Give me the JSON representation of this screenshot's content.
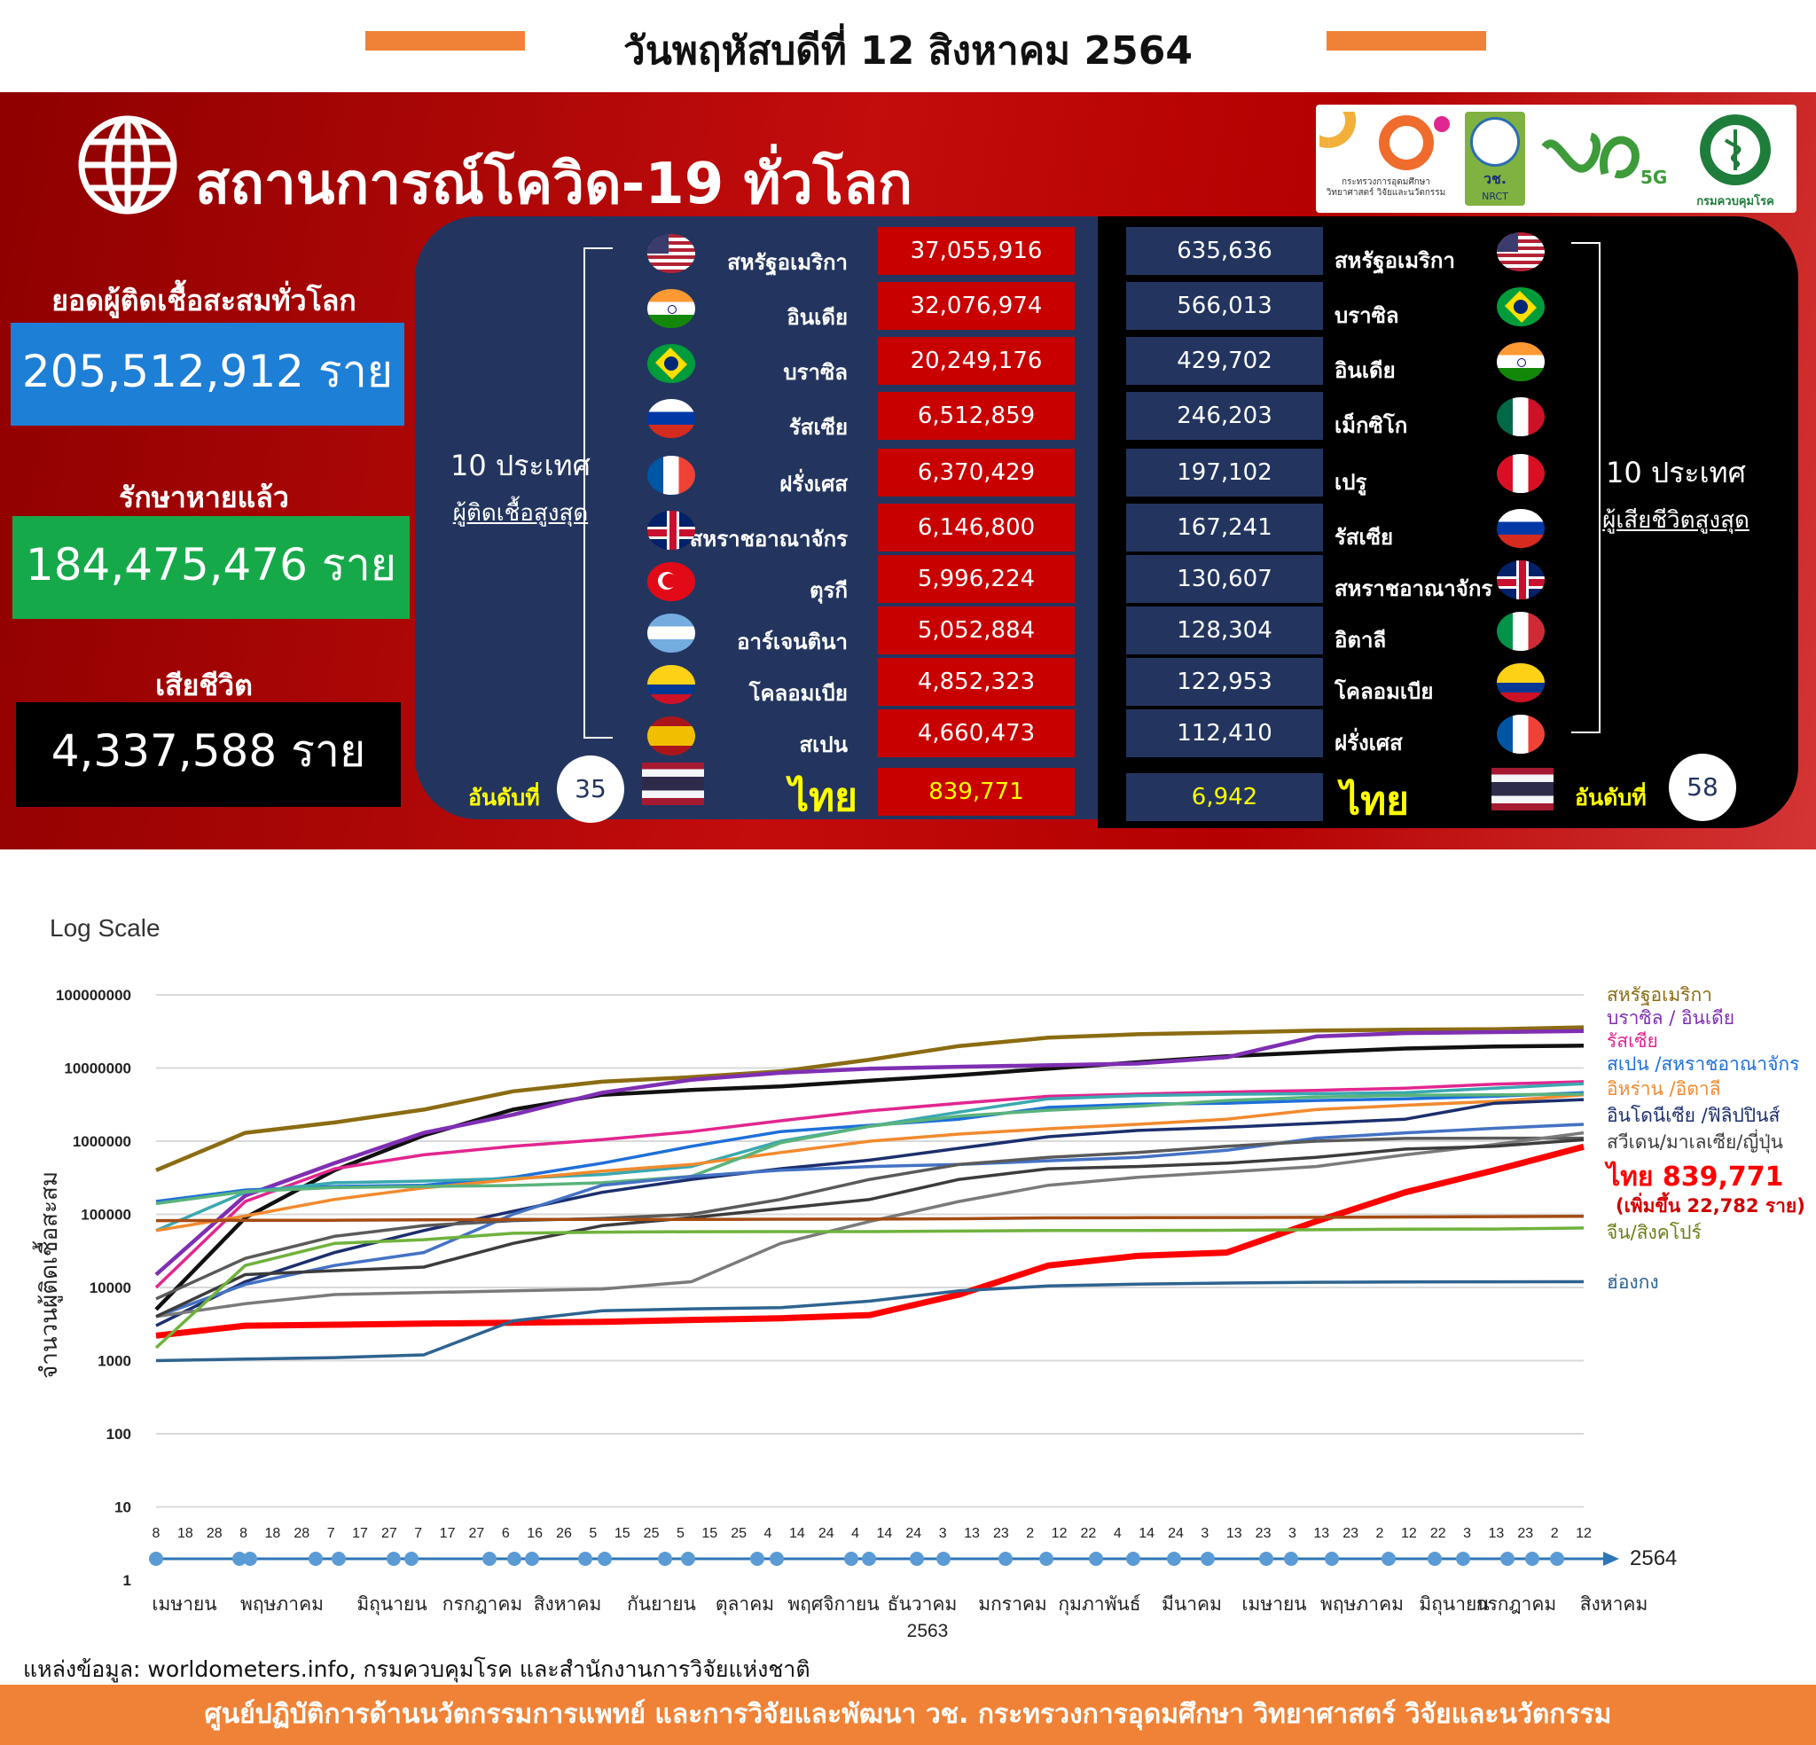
{
  "header": {
    "date_title": "วันพฤหัสบดีที่ 12 สิงหาคม 2564",
    "accent_color": "#ef8236"
  },
  "panel": {
    "title": "สถานการณ์โควิด-19 ทั่วโลก",
    "globe_icon": "globe-icon",
    "logos": {
      "mhesi_caption": "กระทรวงการอุดมศึกษา วิทยาศาสตร์ วิจัยและนวัตกรรม",
      "nrct_text": "วช.",
      "nrct_sub": "NRCT",
      "fiveg_text": "5G",
      "ddc_caption": "กรมควบคุมโรค"
    },
    "stats": {
      "cases_label": "ยอดผู้ติดเชื้อสะสมทั่วโลก",
      "cases_value": "205,512,912 ราย",
      "recovered_label": "รักษาหายแล้ว",
      "recovered_value": "184,475,476 ราย",
      "deaths_label": "เสียชีวิต",
      "deaths_value": "4,337,588 ราย"
    },
    "cases_side": {
      "title": "10 ประเทศ",
      "subtitle": "ผู้ติดเชื้อสูงสุด",
      "rank_label": "อันดับที่",
      "rank": "35"
    },
    "deaths_side": {
      "title": "10 ประเทศ",
      "subtitle": "ผู้เสียชีวิตสูงสุด",
      "rank_label": "อันดับที่",
      "rank": "58"
    },
    "top_cases": [
      {
        "country": "สหรัฐอเมริกา",
        "value": "37,055,916",
        "flag": "us-flag-icon"
      },
      {
        "country": "อินเดีย",
        "value": "32,076,974",
        "flag": "india-flag-icon"
      },
      {
        "country": "บราซิล",
        "value": "20,249,176",
        "flag": "brazil-flag-icon"
      },
      {
        "country": "รัสเซีย",
        "value": "6,512,859",
        "flag": "russia-flag-icon"
      },
      {
        "country": "ฝรั่งเศส",
        "value": "6,370,429",
        "flag": "france-flag-icon"
      },
      {
        "country": "สหราชอาณาจักร",
        "value": "6,146,800",
        "flag": "uk-flag-icon"
      },
      {
        "country": "ตุรกี",
        "value": "5,996,224",
        "flag": "turkey-flag-icon"
      },
      {
        "country": "อาร์เจนตินา",
        "value": "5,052,884",
        "flag": "argentina-flag-icon"
      },
      {
        "country": "โคลอมเบีย",
        "value": "4,852,323",
        "flag": "colombia-flag-icon"
      },
      {
        "country": "สเปน",
        "value": "4,660,473",
        "flag": "spain-flag-icon"
      }
    ],
    "top_deaths": [
      {
        "country": "สหรัฐอเมริกา",
        "value": "635,636",
        "flag": "us-flag-icon"
      },
      {
        "country": "บราซิล",
        "value": "566,013",
        "flag": "brazil-flag-icon"
      },
      {
        "country": "อินเดีย",
        "value": "429,702",
        "flag": "india-flag-icon"
      },
      {
        "country": "เม็กซิโก",
        "value": "246,203",
        "flag": "mexico-flag-icon"
      },
      {
        "country": "เปรู",
        "value": "197,102",
        "flag": "peru-flag-icon"
      },
      {
        "country": "รัสเซีย",
        "value": "167,241",
        "flag": "russia-flag-icon"
      },
      {
        "country": "สหราชอาณาจักร",
        "value": "130,607",
        "flag": "uk-flag-icon"
      },
      {
        "country": "อิตาลี",
        "value": "128,304",
        "flag": "italy-flag-icon"
      },
      {
        "country": "โคลอมเบีย",
        "value": "122,953",
        "flag": "colombia-flag-icon"
      },
      {
        "country": "ฝรั่งเศส",
        "value": "112,410",
        "flag": "france-flag-icon"
      }
    ],
    "thailand": {
      "country": "ไทย",
      "cases_value": "839,771",
      "deaths_value": "6,942",
      "flag": "thailand-flag-icon"
    }
  },
  "chart_data": {
    "type": "line",
    "title": "Log Scale",
    "xlabel": "",
    "ylabel": "จำนวนผู้ติดเชื้อสะสม",
    "y_scale": "log",
    "ylim": [
      1,
      100000000
    ],
    "y_ticks": [
      "1",
      "10",
      "100",
      "1000",
      "10000",
      "100000",
      "1000000",
      "10000000",
      "100000000"
    ],
    "x_day_ticks": [
      "8",
      "18",
      "28",
      "8",
      "18",
      "28",
      "7",
      "17",
      "27",
      "7",
      "17",
      "27",
      "6",
      "16",
      "26",
      "5",
      "15",
      "25",
      "5",
      "15",
      "25",
      "4",
      "14",
      "24",
      "4",
      "14",
      "24",
      "3",
      "13",
      "23",
      "2",
      "12",
      "22",
      "4",
      "14",
      "24",
      "3",
      "13",
      "23",
      "3",
      "13",
      "23",
      "2",
      "12",
      "22",
      "3",
      "13",
      "23",
      "2",
      "12"
    ],
    "x_months": [
      "เมษายน",
      "พฤษภาคม",
      "มิถุนายน",
      "กรกฎาคม",
      "สิงหาคม",
      "กันยายน",
      "ตุลาคม",
      "พฤศจิกายน",
      "ธันวาคม",
      "มกราคม",
      "กุมภาพันธ์",
      "มีนาคม",
      "เมษายน",
      "พฤษภาคม",
      "มิถุนายน",
      "กรกฎาคม",
      "สิงหาคม"
    ],
    "year_mid": "2563",
    "year_end": "2564",
    "x_months_index": [
      0,
      1,
      2,
      3,
      4,
      5,
      6,
      7,
      8,
      9,
      10,
      11,
      12,
      13,
      14,
      15,
      16
    ],
    "grid": true,
    "legend_position": "right",
    "series": [
      {
        "name": "สหรัฐอเมริกา",
        "color": "#8b6c12",
        "values": [
          400000,
          1300000,
          1800000,
          2700000,
          4800000,
          6500000,
          7500000,
          9000000,
          13000000,
          20000000,
          26000000,
          29000000,
          30500000,
          32500000,
          33500000,
          34000000,
          36000000
        ]
      },
      {
        "name": "บราซิล",
        "color": "#111111",
        "values": [
          5000,
          90000,
          400000,
          1200000,
          2700000,
          4300000,
          5000000,
          5600000,
          6700000,
          8000000,
          9800000,
          12000000,
          14500000,
          16500000,
          18500000,
          19700000,
          20200000
        ]
      },
      {
        "name": "อินเดีย",
        "color": "#7f2fb3",
        "values": [
          15000,
          180000,
          500000,
          1300000,
          2300000,
          4600000,
          6900000,
          8600000,
          9800000,
          10400000,
          10900000,
          11500000,
          14000000,
          27000000,
          30000000,
          31000000,
          32000000
        ]
      },
      {
        "name": "รัสเซีย",
        "color": "#e2268f",
        "values": [
          10000,
          150000,
          420000,
          650000,
          850000,
          1050000,
          1350000,
          1900000,
          2600000,
          3300000,
          4100000,
          4400000,
          4700000,
          4950000,
          5300000,
          6000000,
          6500000
        ]
      },
      {
        "name": "สเปน",
        "color": "#1e6fd9",
        "values": [
          150000,
          215000,
          240000,
          250000,
          320000,
          500000,
          850000,
          1350000,
          1650000,
          2000000,
          2900000,
          3200000,
          3300000,
          3600000,
          3800000,
          4100000,
          4600000
        ]
      },
      {
        "name": "สหราชอาณาจักร",
        "color": "#3aa8b0",
        "values": [
          60000,
          200000,
          270000,
          285000,
          310000,
          350000,
          450000,
          1000000,
          1600000,
          2500000,
          3800000,
          4200000,
          4380000,
          4450000,
          4600000,
          5300000,
          6100000
        ]
      },
      {
        "name": "อิหร่าน",
        "color": "#f28a2e",
        "values": [
          60000,
          95000,
          160000,
          230000,
          300000,
          390000,
          480000,
          700000,
          1000000,
          1250000,
          1480000,
          1700000,
          2000000,
          2700000,
          3100000,
          3500000,
          4300000
        ]
      },
      {
        "name": "อิตาลี",
        "color": "#5ab37b",
        "values": [
          140000,
          205000,
          232000,
          240000,
          248000,
          270000,
          330000,
          950000,
          1600000,
          2200000,
          2650000,
          3000000,
          3600000,
          4000000,
          4250000,
          4290000,
          4400000
        ]
      },
      {
        "name": "อินโดนีเซีย",
        "color": "#1c2e6e",
        "values": [
          3000,
          12000,
          30000,
          60000,
          110000,
          200000,
          300000,
          420000,
          550000,
          800000,
          1150000,
          1400000,
          1550000,
          1750000,
          2000000,
          3300000,
          3700000
        ]
      },
      {
        "name": "ฟิลิปปินส์",
        "color": "#4472c4",
        "values": [
          4000,
          11000,
          20000,
          30000,
          100000,
          250000,
          330000,
          400000,
          450000,
          480000,
          540000,
          600000,
          750000,
          1100000,
          1300000,
          1500000,
          1700000
        ]
      },
      {
        "name": "สวีเดน",
        "color": "#5a5a5a",
        "values": [
          7000,
          25000,
          50000,
          70000,
          82000,
          88000,
          100000,
          160000,
          300000,
          480000,
          600000,
          700000,
          850000,
          1000000,
          1090000,
          1100000,
          1100000
        ]
      },
      {
        "name": "มาเลเซีย",
        "color": "#7a7a7a",
        "values": [
          4000,
          6000,
          8000,
          8500,
          9000,
          9500,
          12000,
          40000,
          80000,
          150000,
          250000,
          320000,
          380000,
          450000,
          650000,
          900000,
          1300000
        ]
      },
      {
        "name": "ญี่ปุ่น",
        "color": "#3c3c3c",
        "values": [
          4000,
          15000,
          17000,
          19000,
          40000,
          70000,
          90000,
          120000,
          160000,
          300000,
          420000,
          450000,
          500000,
          600000,
          780000,
          850000,
          1050000
        ]
      },
      {
        "name": "ไทย",
        "color": "#ff0000",
        "values": [
          2200,
          3000,
          3100,
          3200,
          3300,
          3400,
          3600,
          3800,
          4200,
          8000,
          20000,
          27000,
          30000,
          80000,
          200000,
          400000,
          839771
        ]
      },
      {
        "name": "จีน",
        "color": "#a54b13",
        "values": [
          82000,
          82800,
          83000,
          84000,
          85000,
          85000,
          85300,
          85800,
          86000,
          87000,
          89500,
          90000,
          90500,
          91000,
          92000,
          93000,
          94000
        ]
      },
      {
        "name": "สิงคโปร์",
        "color": "#6fb23d",
        "values": [
          1500,
          20000,
          40000,
          45000,
          55000,
          57000,
          57800,
          58000,
          58000,
          59000,
          60000,
          60000,
          60500,
          61500,
          62500,
          63000,
          65000
        ]
      },
      {
        "name": "ฮ่องกง",
        "color": "#2e6390",
        "values": [
          1000,
          1050,
          1100,
          1200,
          3500,
          4800,
          5100,
          5300,
          6500,
          9000,
          10500,
          11100,
          11500,
          11800,
          11900,
          11950,
          12000
        ]
      }
    ],
    "legend": [
      {
        "text": "สหรัฐอเมริกา",
        "color": "#8b6c12"
      },
      {
        "text": "บราซิล / อินเดีย",
        "color": "#7f2fb3"
      },
      {
        "text": "รัสเซีย",
        "color": "#e2268f"
      },
      {
        "text": "สเปน /สหราชอาณาจักร",
        "color": "#1e6fd9"
      },
      {
        "text": "อิหร่าน /อิตาลี",
        "color": "#f28a2e"
      },
      {
        "text": "อินโดนีเซีย /ฟิลิปปินส์",
        "color": "#1c2e6e"
      },
      {
        "text": "สวีเดน/มาเลเซีย/ญี่ปุ่น",
        "color": "#3c3c3c"
      },
      {
        "text": "ไทย 839,771",
        "color": "#ff0000"
      },
      {
        "text": "(เพิ่มขึ้น 22,782 ราย)",
        "color": "#d00000"
      },
      {
        "text": "จีน/สิงคโปร์",
        "color": "#6f7e16"
      },
      {
        "text": "ฮ่องกง",
        "color": "#2e6390"
      }
    ]
  },
  "source_text": "แหล่งข้อมูล: worldometers.info, กรมควบคุมโรค และสำนักงานการวิจัยแห่งชาติ",
  "footer_text": "ศูนย์ปฏิบัติการด้านนวัตกรรมการแพทย์ และการวิจัยและพัฒนา วช. กระทรวงการอุดมศึกษา วิทยาศาสตร์ วิจัยและนวัตกรรม"
}
